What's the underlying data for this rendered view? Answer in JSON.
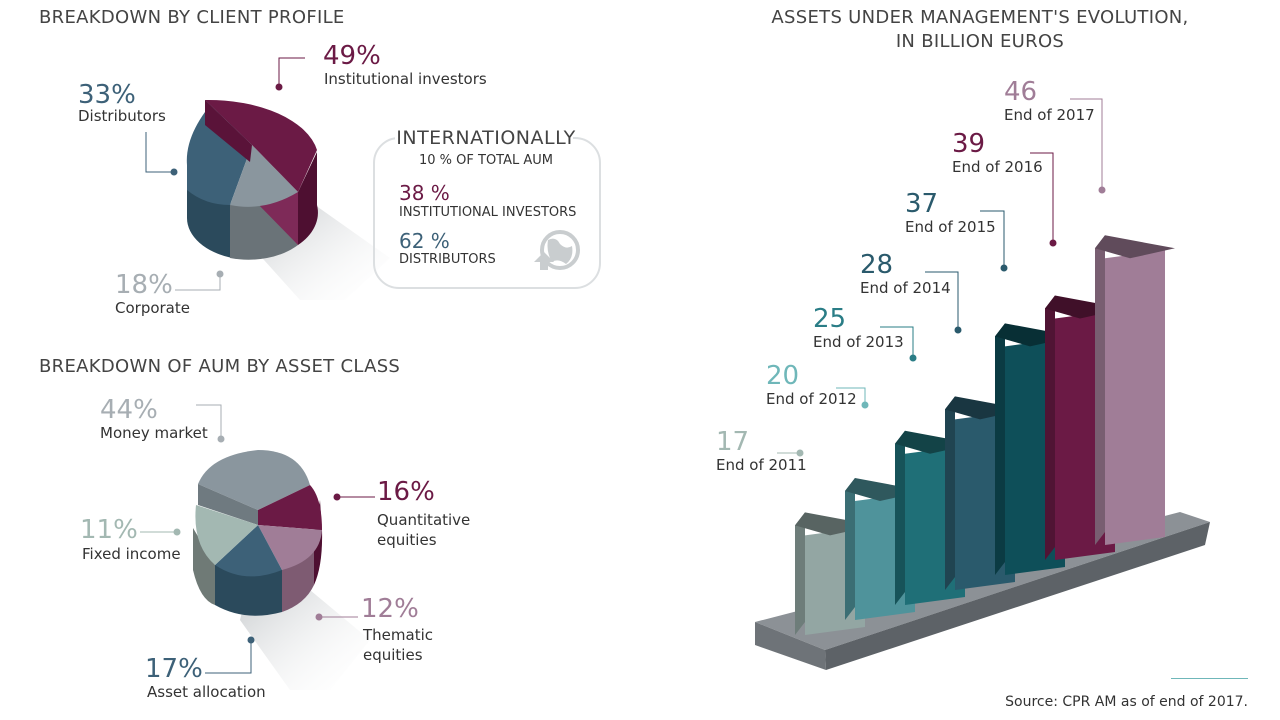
{
  "colors": {
    "plum": "#6b1a45",
    "steel_blue": "#3d6178",
    "grey": "#8a969e",
    "light_grey_text": "#a7aeb3",
    "mauve": "#a07d97",
    "mint": "#a3b8b2",
    "petrol": "#0e4f59",
    "teal": "#1f6f77"
  },
  "client_profile": {
    "title": "BREAKDOWN BY CLIENT PROFILE",
    "slices": [
      {
        "pct": "49%",
        "label": "Institutional investors",
        "value": 49,
        "color": "#6b1a45"
      },
      {
        "pct": "33%",
        "label": "Distributors",
        "value": 33,
        "color": "#3d6178"
      },
      {
        "pct": "18%",
        "label": "Corporate",
        "value": 18,
        "color": "#8a969e"
      }
    ],
    "international": {
      "title": "INTERNATIONALLY",
      "subtitle": "10 % OF TOTAL AUM",
      "items": [
        {
          "pct": "38 %",
          "label": "INSTITUTIONAL INVESTORS"
        },
        {
          "pct": "62 %",
          "label": "DISTRIBUTORS"
        }
      ],
      "icon": "globe-icon"
    }
  },
  "asset_class": {
    "title": "BREAKDOWN OF AUM BY ASSET CLASS",
    "slices": [
      {
        "pct": "44%",
        "label": "Money market",
        "value": 44,
        "color": "#8a969e"
      },
      {
        "pct": "16%",
        "label": "Quantitative equities",
        "value": 16,
        "color": "#6b1a45"
      },
      {
        "pct": "12%",
        "label": "Thematic equities",
        "value": 12,
        "color": "#a07d97"
      },
      {
        "pct": "17%",
        "label": "Asset allocation",
        "value": 17,
        "color": "#3d6178"
      },
      {
        "pct": "11%",
        "label": "Fixed income",
        "value": 11,
        "color": "#a3b8b2"
      }
    ]
  },
  "aum_evolution": {
    "title_line1": "ASSETS UNDER MANAGEMENT'S EVOLUTION,",
    "title_line2": "IN BILLION EUROS"
  },
  "chart_data": [
    {
      "type": "pie",
      "title": "BREAKDOWN BY CLIENT PROFILE",
      "categories": [
        "Institutional investors",
        "Distributors",
        "Corporate"
      ],
      "values": [
        49,
        33,
        18
      ]
    },
    {
      "type": "pie",
      "title": "BREAKDOWN OF AUM BY ASSET CLASS",
      "categories": [
        "Money market",
        "Quantitative equities",
        "Thematic equities",
        "Asset allocation",
        "Fixed income"
      ],
      "values": [
        44,
        16,
        12,
        17,
        11
      ]
    },
    {
      "type": "bar",
      "title": "ASSETS UNDER MANAGEMENT'S EVOLUTION, IN BILLION EUROS",
      "categories": [
        "End of 2011",
        "End of 2012",
        "End of 2013",
        "End of 2014",
        "End of 2015",
        "End of 2016",
        "End of 2017"
      ],
      "values": [
        17,
        20,
        25,
        28,
        37,
        39,
        46
      ],
      "colors": [
        "#93a6a3",
        "#4f939b",
        "#1f6f77",
        "#2a5a6c",
        "#0e4f59",
        "#6b1a45",
        "#a07d97"
      ]
    }
  ],
  "source": "Source: CPR AM as of end of 2017."
}
